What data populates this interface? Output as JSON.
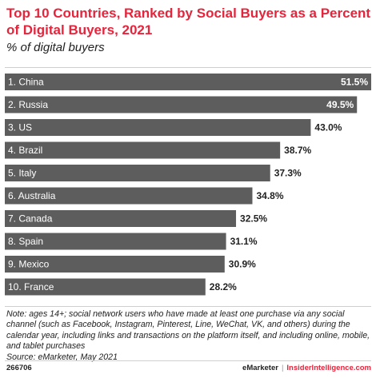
{
  "header": {
    "title": "Top 10 Countries, Ranked by Social Buyers as a Percent of Digital Buyers, 2021",
    "subtitle": "% of digital buyers"
  },
  "chart_data": {
    "type": "bar",
    "orientation": "horizontal",
    "categories": [
      "1. China",
      "2. Russia",
      "3. US",
      "4. Brazil",
      "5. Italy",
      "6. Australia",
      "7. Canada",
      "8. Spain",
      "9. Mexico",
      "10. France"
    ],
    "values": [
      51.5,
      49.5,
      43.0,
      38.7,
      37.3,
      34.8,
      32.5,
      31.1,
      30.9,
      28.2
    ],
    "value_labels": [
      "51.5%",
      "49.5%",
      "43.0%",
      "38.7%",
      "37.3%",
      "34.8%",
      "32.5%",
      "31.1%",
      "30.9%",
      "28.2%"
    ],
    "bar_color": "#5d5d5d",
    "grid": false,
    "legend": "none"
  },
  "notes": {
    "text": "Note: ages 14+; social network users who have made at least one purchase via any social channel (such as Facebook, Instagram, Pinterest, Line, WeChat, VK, and others) during the calendar year, including links and transactions on the platform itself, and including online, mobile, and tablet purchases",
    "source": "Source: eMarketer, May 2021"
  },
  "footer": {
    "chart_id": "266706",
    "brand_emarketer": "eMarketer",
    "separator": "|",
    "brand_ii": "InsiderIntelligence.com"
  },
  "colors": {
    "title": "#e4253c",
    "bar": "#5d5d5d",
    "bar_label": "#ffffff",
    "value_outside": "#222222"
  }
}
